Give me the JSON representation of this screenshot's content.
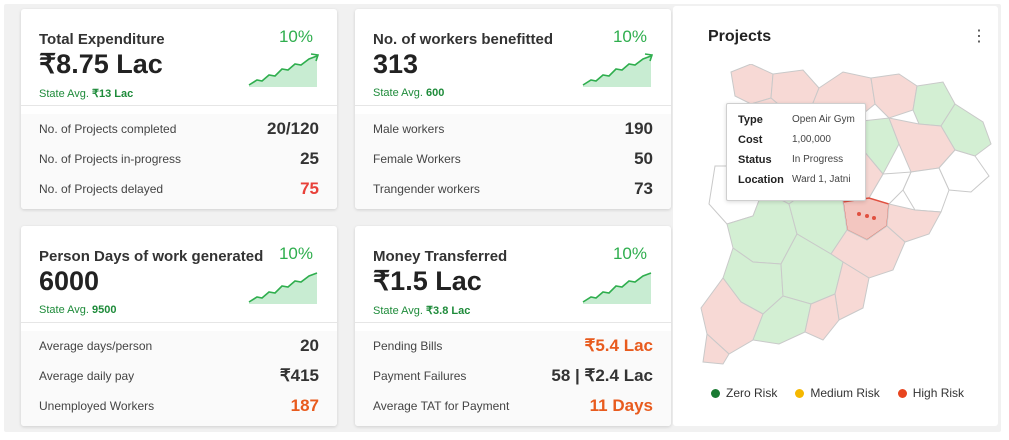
{
  "cards": [
    {
      "title": "Total Expenditure",
      "value": "₹8.75 Lac",
      "avg_label": "State Avg. ",
      "avg_value": "₹13 Lac",
      "change": "10%",
      "rows": [
        {
          "label": "No. of Projects completed",
          "value": "20/120",
          "color": "#333333"
        },
        {
          "label": "No. of Projects in-progress",
          "value": "25",
          "color": "#333333"
        },
        {
          "label": "No. of Projects delayed",
          "value": "75",
          "color": "#e8413a"
        }
      ]
    },
    {
      "title": "No. of workers benefitted",
      "value": "313",
      "avg_label": "State Avg. ",
      "avg_value": "600",
      "change": "10%",
      "rows": [
        {
          "label": "Male workers",
          "value": "190",
          "color": "#333333"
        },
        {
          "label": "Female Workers",
          "value": "50",
          "color": "#333333"
        },
        {
          "label": "Trangender workers",
          "value": "73",
          "color": "#333333"
        }
      ]
    },
    {
      "title": "Person Days of work generated",
      "value": "6000",
      "avg_label": "State Avg. ",
      "avg_value": "9500",
      "change": "10%",
      "rows": [
        {
          "label": "Average days/person",
          "value": "20",
          "color": "#333333"
        },
        {
          "label": "Average daily pay",
          "value": "₹415",
          "color": "#333333"
        },
        {
          "label": "Unemployed Workers",
          "value": "187",
          "color": "#e85b1e"
        }
      ]
    },
    {
      "title": "Money Transferred",
      "value": "₹1.5 Lac",
      "avg_label": "State Avg. ",
      "avg_value": "₹3.8 Lac",
      "change": "10%",
      "rows": [
        {
          "label": "Pending Bills",
          "value": "₹5.4 Lac",
          "color": "#e85b1e"
        },
        {
          "label": "Payment Failures",
          "value": "58 | ₹2.4 Lac",
          "color": "#333333"
        },
        {
          "label": "Average TAT for Payment",
          "value": "11 Days",
          "color": "#e85b1e"
        }
      ]
    }
  ],
  "projects": {
    "title": "Projects",
    "menu_icon": "kebab-menu-icon",
    "tooltip": [
      {
        "key": "Type",
        "value": "Open Air Gym"
      },
      {
        "key": "Cost",
        "value": "1,00,000"
      },
      {
        "key": "Status",
        "value": "In Progress"
      },
      {
        "key": "Location",
        "value": "Ward 1, Jatni"
      }
    ],
    "legend": [
      {
        "label": "Zero Risk",
        "color": "#1a7a32"
      },
      {
        "label": "Medium Risk",
        "color": "#f5b800"
      },
      {
        "label": "High Risk",
        "color": "#e8451f"
      }
    ]
  },
  "colors": {
    "positive": "#2fae4e",
    "map_green": "#d3efd3",
    "map_red": "#f7d9d5",
    "map_highlight": "#e05040"
  }
}
